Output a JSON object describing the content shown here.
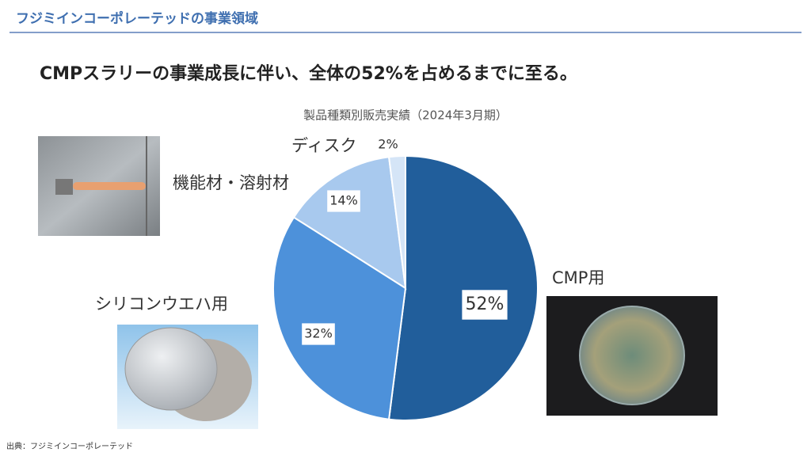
{
  "header": "フジミインコーポレーテッドの事業領域",
  "headline": "CMPスラリーの事業成長に伴い、全体の52%を占めるまでに至る。",
  "source": "出典：フジミインコーポレーテッド",
  "chart_data": {
    "type": "pie",
    "title": "製品種類別販売実績（2024年3月期）",
    "categories": [
      "CMP用",
      "シリコンウエハ用",
      "機能材・溶射材",
      "ディスク"
    ],
    "values": [
      52,
      32,
      14,
      2
    ],
    "value_labels": [
      "52%",
      "32%",
      "14%",
      "2%"
    ],
    "colors": [
      "#215e9b",
      "#4d91da",
      "#a8c9ee",
      "#d5e5f7"
    ]
  }
}
